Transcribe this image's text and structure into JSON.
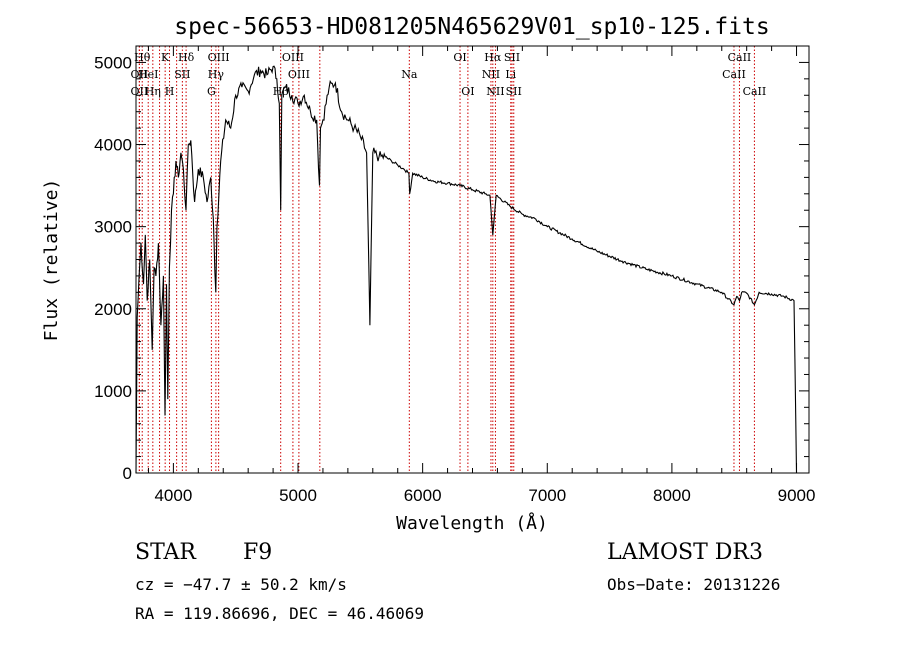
{
  "chart_data": {
    "type": "line",
    "title": "spec-56653-HD081205N465629V01_sp10-125.fits",
    "xlabel": "Wavelength (Å)",
    "ylabel": "Flux (relative)",
    "xlim": [
      3700,
      9100
    ],
    "ylim": [
      0,
      5200
    ],
    "xticks": [
      "4000",
      "5000",
      "6000",
      "7000",
      "8000",
      "9000"
    ],
    "yticks": [
      "0",
      "1000",
      "2000",
      "3000",
      "4000",
      "5000"
    ],
    "xtick_values": [
      4000,
      5000,
      6000,
      7000,
      8000,
      9000
    ],
    "ytick_values": [
      0,
      1000,
      2000,
      3000,
      4000,
      5000
    ],
    "series": [
      {
        "name": "spectrum",
        "x": [
          3700,
          3710,
          3725,
          3740,
          3760,
          3775,
          3790,
          3810,
          3830,
          3845,
          3860,
          3880,
          3900,
          3920,
          3933,
          3945,
          3955,
          3968,
          3985,
          4000,
          4020,
          4040,
          4060,
          4080,
          4101,
          4120,
          4140,
          4170,
          4200,
          4240,
          4270,
          4300,
          4320,
          4340,
          4350,
          4380,
          4420,
          4460,
          4500,
          4550,
          4600,
          4650,
          4700,
          4750,
          4800,
          4830,
          4850,
          4861,
          4870,
          4900,
          4950,
          5000,
          5050,
          5100,
          5150,
          5172,
          5180,
          5200,
          5250,
          5300,
          5350,
          5400,
          5450,
          5500,
          5550,
          5577,
          5600,
          5650,
          5700,
          5750,
          5800,
          5850,
          5890,
          5896,
          5920,
          6000,
          6100,
          6200,
          6300,
          6400,
          6500,
          6540,
          6563,
          6590,
          6700,
          6800,
          6900,
          7000,
          7200,
          7400,
          7600,
          7800,
          8000,
          8200,
          8400,
          8498,
          8520,
          8542,
          8560,
          8600,
          8662,
          8700,
          8800,
          8900,
          8980,
          9000
        ],
        "values": [
          0,
          1900,
          2400,
          2800,
          2300,
          2900,
          2100,
          2600,
          1500,
          2500,
          2400,
          2800,
          1800,
          2400,
          700,
          2300,
          900,
          2500,
          3200,
          3400,
          3800,
          3600,
          3900,
          3700,
          3200,
          4000,
          4050,
          3300,
          3700,
          3600,
          3300,
          3600,
          3100,
          2200,
          3000,
          3800,
          4300,
          4200,
          4600,
          4700,
          4650,
          4850,
          4900,
          4850,
          4950,
          4800,
          4500,
          3200,
          4600,
          4700,
          4600,
          4500,
          4600,
          4400,
          4300,
          3500,
          4200,
          4300,
          4700,
          4750,
          4400,
          4300,
          4200,
          4100,
          3900,
          1800,
          3900,
          3850,
          3850,
          3800,
          3750,
          3700,
          3650,
          3400,
          3650,
          3600,
          3550,
          3530,
          3500,
          3450,
          3400,
          3380,
          2900,
          3380,
          3250,
          3150,
          3100,
          3000,
          2850,
          2700,
          2580,
          2480,
          2400,
          2300,
          2200,
          2050,
          2150,
          2100,
          2200,
          2190,
          2050,
          2200,
          2180,
          2150,
          2100,
          0
        ]
      }
    ],
    "lines": [
      {
        "x": 3750,
        "label": "Hθ",
        "row": 0
      },
      {
        "x": 3727,
        "label": "OII",
        "row": 1
      },
      {
        "x": 3727,
        "label": "OII",
        "row": 2
      },
      {
        "x": 3798,
        "label": "HeI",
        "row": 1
      },
      {
        "x": 3835,
        "label": "Hη",
        "row": 2
      },
      {
        "x": 3889,
        "label": "",
        "row": 0
      },
      {
        "x": 3934,
        "label": "K",
        "row": 0
      },
      {
        "x": 3969,
        "label": "H",
        "row": 2
      },
      {
        "x": 4026,
        "label": "",
        "row": 0
      },
      {
        "x": 4072,
        "label": "SII",
        "row": 1
      },
      {
        "x": 4102,
        "label": "Hδ",
        "row": 0
      },
      {
        "x": 4305,
        "label": "G",
        "row": 2
      },
      {
        "x": 4341,
        "label": "Hγ",
        "row": 1
      },
      {
        "x": 4363,
        "label": "OIII",
        "row": 0
      },
      {
        "x": 4861,
        "label": "Hβ",
        "row": 2
      },
      {
        "x": 4959,
        "label": "OIII",
        "row": 0
      },
      {
        "x": 5007,
        "label": "OIII",
        "row": 1
      },
      {
        "x": 5175,
        "label": "",
        "row": 0
      },
      {
        "x": 5893,
        "label": "Na",
        "row": 1
      },
      {
        "x": 6300,
        "label": "OI",
        "row": 0
      },
      {
        "x": 6363,
        "label": "OI",
        "row": 2
      },
      {
        "x": 6548,
        "label": "NII",
        "row": 1
      },
      {
        "x": 6563,
        "label": "Hα",
        "row": 0
      },
      {
        "x": 6584,
        "label": "NII",
        "row": 2
      },
      {
        "x": 6707,
        "label": "Li",
        "row": 1
      },
      {
        "x": 6717,
        "label": "SII",
        "row": 0
      },
      {
        "x": 6731,
        "label": "SII",
        "row": 2
      },
      {
        "x": 8498,
        "label": "CaII",
        "row": 1
      },
      {
        "x": 8542,
        "label": "CaII",
        "row": 0
      },
      {
        "x": 8662,
        "label": "CaII",
        "row": 2
      }
    ]
  },
  "info": {
    "star": "STAR",
    "subclass": "F9",
    "survey": "LAMOST DR3",
    "cz": "cz = −47.7 ± 50.2 km/s",
    "obs_date": "Obs−Date: 20131226",
    "radec": "RA = 119.86696, DEC =  46.46069"
  },
  "colors": {
    "axis": "#000000",
    "spectrum": "#000000",
    "line_marker": "#cc0000"
  }
}
